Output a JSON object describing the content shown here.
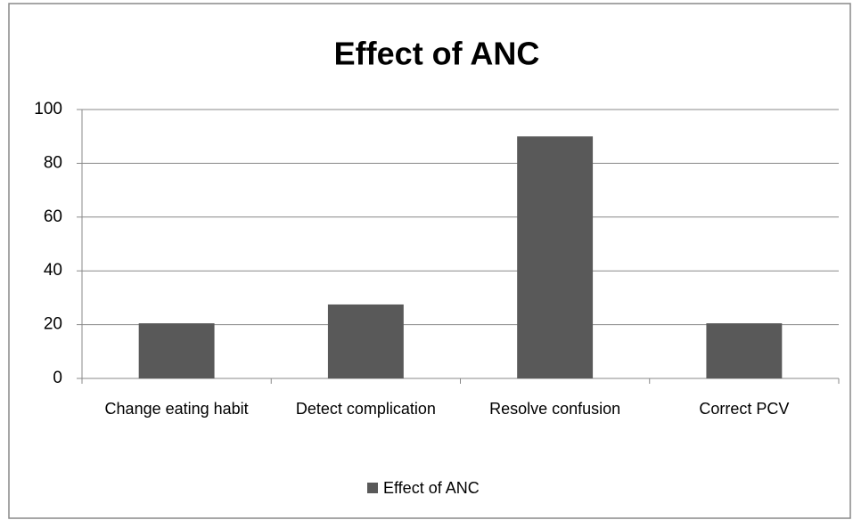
{
  "chart_data": {
    "type": "bar",
    "title": "Effect of  ANC",
    "categories": [
      "Change eating habit",
      "Detect complication",
      "Resolve confusion",
      "Correct PCV"
    ],
    "series": [
      {
        "name": "Effect of  ANC",
        "color": "#595959",
        "values": [
          20.5,
          27.5,
          90,
          20.5
        ]
      }
    ],
    "ylim": [
      0,
      100
    ],
    "yticks": [
      0,
      20,
      40,
      60,
      80,
      100
    ],
    "grid": true,
    "legend": "bottom"
  }
}
